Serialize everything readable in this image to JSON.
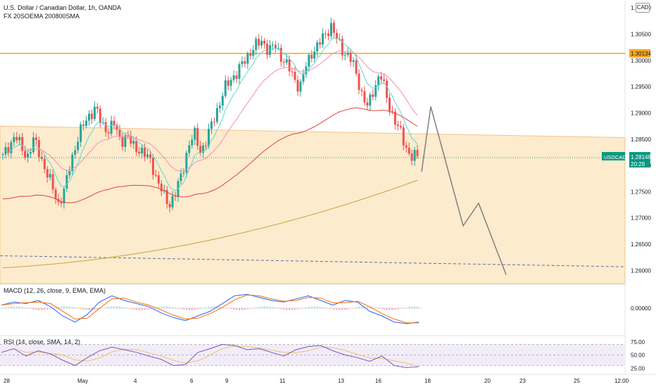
{
  "header": {
    "title": "U.S. Dollar / Canadian Dollar, 1h, OANDA",
    "indicators": "FX 20SOEMA 200800SMA"
  },
  "currency_button": "CAD",
  "price_axis": {
    "ticks": [
      "1.31000",
      "1.30500",
      "1.30000",
      "1.29500",
      "1.29000",
      "1.28500",
      "1.28000",
      "1.27500",
      "1.27000",
      "1.26500",
      "1.26000"
    ],
    "resistance_label": "1.30134",
    "symbol_tag": "USDCAD",
    "last_price": "1.28148",
    "countdown": "20:29"
  },
  "macd": {
    "label": "MACD (12, 26, close, 9, EMA, EMA)",
    "zero_tick": "0.00000"
  },
  "rsi": {
    "label": "RSI (14, close, SMA, 14, 2)",
    "ticks": [
      "75.00",
      "50.00",
      "25.00"
    ]
  },
  "time_axis": {
    "labels": [
      "28",
      "May",
      "4",
      "6",
      "9",
      "11",
      "13",
      "16",
      "18",
      "20",
      "23",
      "25",
      "12:00"
    ]
  },
  "colors": {
    "up": "#26a69a",
    "down": "#ef5350",
    "resistance": "#f5a623",
    "zone": "#fde7c6",
    "ema_fast": "#5ed8d0",
    "ema_mid": "#f48fb1",
    "ema_slow": "#e0443c",
    "sma_slow": "#c9a13b",
    "projection": "#808080",
    "support_dashed": "#5d6d9e",
    "tag": "#089981",
    "rsi_band": "#ede7f6"
  },
  "chart_data": {
    "type": "candlestick",
    "symbol": "USDCAD",
    "interval": "1h",
    "ylim": [
      1.2575,
      1.3115
    ],
    "resistance_level": 1.30134,
    "last_price": 1.28148,
    "supply_zone_top": [
      1.2875,
      1.2853
    ],
    "support_level": [
      1.2628,
      1.2607
    ],
    "close_path": [
      1.2815,
      1.2838,
      1.2858,
      1.2832,
      1.2818,
      1.2848,
      1.2822,
      1.2788,
      1.2758,
      1.2728,
      1.2752,
      1.2808,
      1.2848,
      1.2875,
      1.2898,
      1.2908,
      1.2878,
      1.2868,
      1.2878,
      1.2848,
      1.2855,
      1.2838,
      1.2832,
      1.2818,
      1.2808,
      1.2768,
      1.2742,
      1.2728,
      1.2748,
      1.2788,
      1.2838,
      1.2858,
      1.2828,
      1.2848,
      1.2888,
      1.2918,
      1.2948,
      1.2968,
      1.2978,
      1.2998,
      1.3018,
      1.3028,
      1.3038,
      1.3018,
      1.3028,
      1.3008,
      1.2988,
      1.2968,
      1.2948,
      1.2988,
      1.3018,
      1.3028,
      1.3048,
      1.3068,
      1.3038,
      1.3018,
      1.3008,
      1.2978,
      1.2938,
      1.2908,
      1.2948,
      1.2978,
      1.2928,
      1.2898,
      1.2868,
      1.2838,
      1.2818,
      1.2815
    ],
    "projection": [
      [
        1.2788,
        1.2912,
        1.2685,
        1.2728,
        1.2592
      ]
    ],
    "macd_line": [
      0.2,
      0.4,
      0.3,
      0.5,
      0.1,
      -0.5,
      -0.9,
      -0.4,
      0.4,
      0.8,
      0.5,
      0.3,
      0.1,
      -0.3,
      -0.6,
      -0.8,
      -0.5,
      -0.2,
      0.3,
      0.8,
      0.9,
      0.7,
      0.5,
      0.4,
      0.6,
      0.8,
      0.5,
      0.2,
      0.5,
      0.4,
      -0.2,
      -0.5,
      -0.9,
      -1.0,
      -0.9
    ],
    "rsi_values": [
      55,
      62,
      48,
      58,
      52,
      40,
      30,
      45,
      58,
      65,
      60,
      55,
      48,
      42,
      30,
      32,
      55,
      62,
      70,
      68,
      60,
      62,
      55,
      48,
      60,
      66,
      68,
      58,
      50,
      45,
      38,
      48,
      30,
      26,
      28
    ],
    "rsi_levels": [
      70,
      50,
      30
    ]
  }
}
